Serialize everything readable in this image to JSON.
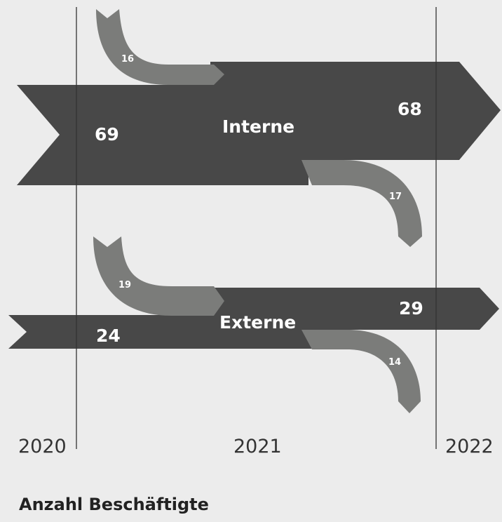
{
  "colors": {
    "background": "#ececec",
    "dark_arrow": "#484848",
    "light_arrow": "#7b7c7a",
    "label_text": "#ffffff",
    "timeline_line": "#333333"
  },
  "timeline": {
    "years": [
      "2020",
      "2021",
      "2022"
    ]
  },
  "flows": {
    "interne": {
      "label": "Interne",
      "start_value": "69",
      "end_value": "68",
      "inflow": "16",
      "outflow": "17"
    },
    "externe": {
      "label": "Externe",
      "start_value": "24",
      "end_value": "29",
      "inflow": "19",
      "outflow": "14"
    }
  },
  "caption": "Anzahl Beschäftigte"
}
